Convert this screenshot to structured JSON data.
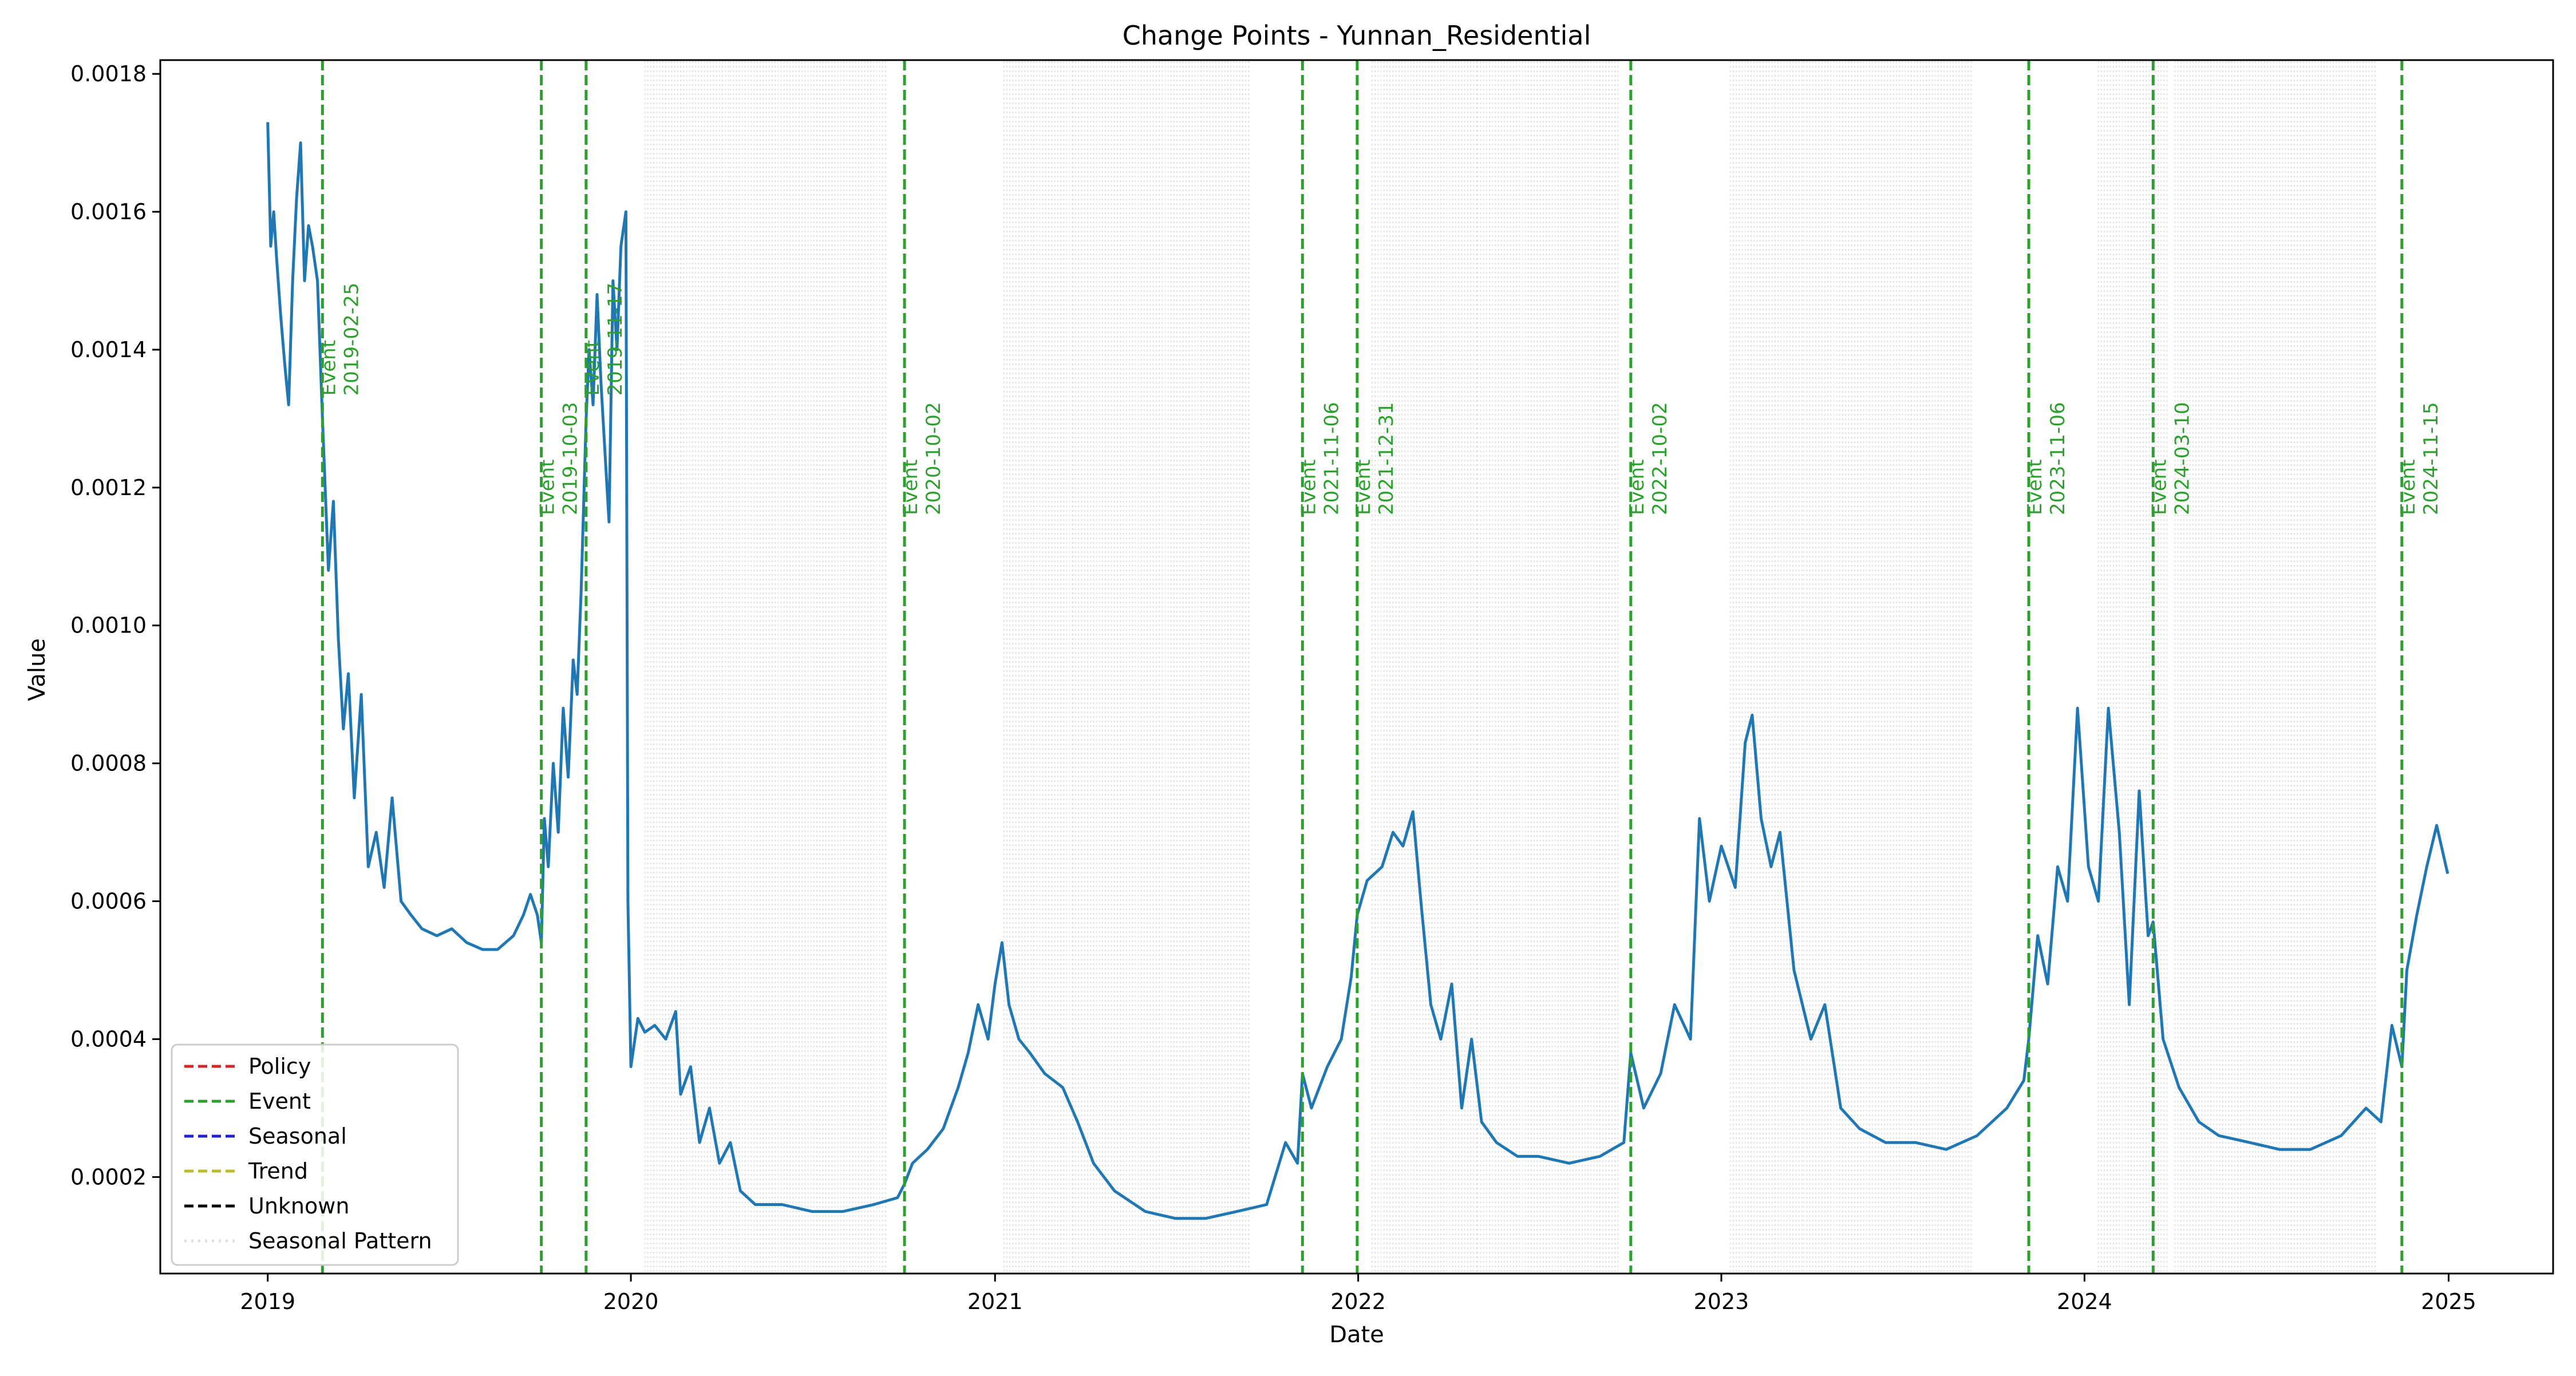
{
  "chart_data": {
    "type": "line",
    "title": "Change Points - Yunnan_Residential",
    "xlabel": "Date",
    "ylabel": "Value",
    "xlim": [
      "2018-09-15",
      "2025-04-16"
    ],
    "ylim": [
      6e-05,
      0.00182
    ],
    "x_ticks": [
      "2019",
      "2020",
      "2021",
      "2022",
      "2023",
      "2024",
      "2025"
    ],
    "y_ticks": [
      "0.0002",
      "0.0004",
      "0.0006",
      "0.0008",
      "0.0010",
      "0.0012",
      "0.0014",
      "0.0016",
      "0.0018"
    ],
    "grid": false,
    "legend_position": "lower-left",
    "legend": [
      {
        "label": "Policy",
        "color": "#d62728",
        "style": "dashed"
      },
      {
        "label": "Event",
        "color": "#2ca02c",
        "style": "dashed"
      },
      {
        "label": "Seasonal",
        "color": "#1f1fd6",
        "style": "dashed"
      },
      {
        "label": "Trend",
        "color": "#bcbd22",
        "style": "dashed"
      },
      {
        "label": "Unknown",
        "color": "#000000",
        "style": "dashed"
      },
      {
        "label": "Seasonal Pattern",
        "color": "#cccccc",
        "style": "dotted"
      }
    ],
    "colors": {
      "series": "#1f77b4",
      "event": "#2ca02c",
      "seasonal_pattern": "#c8c8c8"
    },
    "change_points": [
      {
        "date": "2019-02-25",
        "type": "Event"
      },
      {
        "date": "2019-10-03",
        "type": "Event"
      },
      {
        "date": "2019-11-17",
        "type": "Event"
      },
      {
        "date": "2020-10-02",
        "type": "Event"
      },
      {
        "date": "2021-11-06",
        "type": "Event"
      },
      {
        "date": "2021-12-31",
        "type": "Event"
      },
      {
        "date": "2022-10-02",
        "type": "Event"
      },
      {
        "date": "2023-11-06",
        "type": "Event"
      },
      {
        "date": "2024-03-10",
        "type": "Event"
      },
      {
        "date": "2024-11-15",
        "type": "Event"
      }
    ],
    "seasonal_pattern_ranges": [
      [
        "2020-01-15",
        "2020-04-10"
      ],
      [
        "2020-04-10",
        "2020-09-15"
      ],
      [
        "2021-01-10",
        "2021-03-20"
      ],
      [
        "2021-03-20",
        "2021-09-15"
      ],
      [
        "2022-01-15",
        "2022-05-01"
      ],
      [
        "2022-05-01",
        "2022-09-20"
      ],
      [
        "2023-01-10",
        "2023-03-25"
      ],
      [
        "2023-03-25",
        "2023-09-10"
      ],
      [
        "2024-01-15",
        "2024-03-25"
      ],
      [
        "2024-04-01",
        "2024-10-20"
      ]
    ],
    "series": [
      {
        "values": [
          {
            "x": "2019-01-01",
            "y": 0.00173
          },
          {
            "x": "2019-01-04",
            "y": 0.00155
          },
          {
            "x": "2019-01-07",
            "y": 0.0016
          },
          {
            "x": "2019-01-10",
            "y": 0.00153
          },
          {
            "x": "2019-01-14",
            "y": 0.00145
          },
          {
            "x": "2019-01-18",
            "y": 0.00138
          },
          {
            "x": "2019-01-22",
            "y": 0.00132
          },
          {
            "x": "2019-01-26",
            "y": 0.0015
          },
          {
            "x": "2019-01-30",
            "y": 0.00162
          },
          {
            "x": "2019-02-03",
            "y": 0.0017
          },
          {
            "x": "2019-02-07",
            "y": 0.0015
          },
          {
            "x": "2019-02-11",
            "y": 0.00158
          },
          {
            "x": "2019-02-15",
            "y": 0.00155
          },
          {
            "x": "2019-02-20",
            "y": 0.0015
          },
          {
            "x": "2019-02-25",
            "y": 0.0013
          },
          {
            "x": "2019-03-03",
            "y": 0.00108
          },
          {
            "x": "2019-03-08",
            "y": 0.00118
          },
          {
            "x": "2019-03-13",
            "y": 0.00098
          },
          {
            "x": "2019-03-18",
            "y": 0.00085
          },
          {
            "x": "2019-03-23",
            "y": 0.00093
          },
          {
            "x": "2019-03-29",
            "y": 0.00075
          },
          {
            "x": "2019-04-05",
            "y": 0.0009
          },
          {
            "x": "2019-04-12",
            "y": 0.00065
          },
          {
            "x": "2019-04-20",
            "y": 0.0007
          },
          {
            "x": "2019-04-28",
            "y": 0.00062
          },
          {
            "x": "2019-05-06",
            "y": 0.00075
          },
          {
            "x": "2019-05-15",
            "y": 0.0006
          },
          {
            "x": "2019-05-25",
            "y": 0.00058
          },
          {
            "x": "2019-06-05",
            "y": 0.00056
          },
          {
            "x": "2019-06-20",
            "y": 0.00055
          },
          {
            "x": "2019-07-05",
            "y": 0.00056
          },
          {
            "x": "2019-07-20",
            "y": 0.00054
          },
          {
            "x": "2019-08-05",
            "y": 0.00053
          },
          {
            "x": "2019-08-20",
            "y": 0.00053
          },
          {
            "x": "2019-09-05",
            "y": 0.00055
          },
          {
            "x": "2019-09-15",
            "y": 0.00058
          },
          {
            "x": "2019-09-22",
            "y": 0.00061
          },
          {
            "x": "2019-09-29",
            "y": 0.00058
          },
          {
            "x": "2019-10-03",
            "y": 0.00054
          },
          {
            "x": "2019-10-06",
            "y": 0.00072
          },
          {
            "x": "2019-10-10",
            "y": 0.00065
          },
          {
            "x": "2019-10-15",
            "y": 0.0008
          },
          {
            "x": "2019-10-20",
            "y": 0.0007
          },
          {
            "x": "2019-10-25",
            "y": 0.00088
          },
          {
            "x": "2019-10-30",
            "y": 0.00078
          },
          {
            "x": "2019-11-04",
            "y": 0.00095
          },
          {
            "x": "2019-11-08",
            "y": 0.0009
          },
          {
            "x": "2019-11-12",
            "y": 0.00105
          },
          {
            "x": "2019-11-17",
            "y": 0.0013
          },
          {
            "x": "2019-11-20",
            "y": 0.0014
          },
          {
            "x": "2019-11-24",
            "y": 0.00132
          },
          {
            "x": "2019-11-28",
            "y": 0.00148
          },
          {
            "x": "2019-12-02",
            "y": 0.00135
          },
          {
            "x": "2019-12-06",
            "y": 0.00125
          },
          {
            "x": "2019-12-10",
            "y": 0.00115
          },
          {
            "x": "2019-12-14",
            "y": 0.0015
          },
          {
            "x": "2019-12-18",
            "y": 0.0014
          },
          {
            "x": "2019-12-22",
            "y": 0.00155
          },
          {
            "x": "2019-12-27",
            "y": 0.0016
          },
          {
            "x": "2019-12-29",
            "y": 0.0006
          },
          {
            "x": "2020-01-01",
            "y": 0.00036
          },
          {
            "x": "2020-01-08",
            "y": 0.00043
          },
          {
            "x": "2020-01-15",
            "y": 0.00041
          },
          {
            "x": "2020-01-25",
            "y": 0.00042
          },
          {
            "x": "2020-02-05",
            "y": 0.0004
          },
          {
            "x": "2020-02-15",
            "y": 0.00044
          },
          {
            "x": "2020-02-20",
            "y": 0.00032
          },
          {
            "x": "2020-03-01",
            "y": 0.00036
          },
          {
            "x": "2020-03-10",
            "y": 0.00025
          },
          {
            "x": "2020-03-20",
            "y": 0.0003
          },
          {
            "x": "2020-03-30",
            "y": 0.00022
          },
          {
            "x": "2020-04-10",
            "y": 0.00025
          },
          {
            "x": "2020-04-20",
            "y": 0.00018
          },
          {
            "x": "2020-05-05",
            "y": 0.00016
          },
          {
            "x": "2020-06-01",
            "y": 0.00016
          },
          {
            "x": "2020-07-01",
            "y": 0.00015
          },
          {
            "x": "2020-08-01",
            "y": 0.00015
          },
          {
            "x": "2020-09-01",
            "y": 0.00016
          },
          {
            "x": "2020-09-25",
            "y": 0.00017
          },
          {
            "x": "2020-10-02",
            "y": 0.00019
          },
          {
            "x": "2020-10-10",
            "y": 0.00022
          },
          {
            "x": "2020-10-25",
            "y": 0.00024
          },
          {
            "x": "2020-11-10",
            "y": 0.00027
          },
          {
            "x": "2020-11-25",
            "y": 0.00033
          },
          {
            "x": "2020-12-05",
            "y": 0.00038
          },
          {
            "x": "2020-12-15",
            "y": 0.00045
          },
          {
            "x": "2020-12-25",
            "y": 0.0004
          },
          {
            "x": "2021-01-01",
            "y": 0.00048
          },
          {
            "x": "2021-01-08",
            "y": 0.00054
          },
          {
            "x": "2021-01-15",
            "y": 0.00045
          },
          {
            "x": "2021-01-25",
            "y": 0.0004
          },
          {
            "x": "2021-02-05",
            "y": 0.00038
          },
          {
            "x": "2021-02-20",
            "y": 0.00035
          },
          {
            "x": "2021-03-10",
            "y": 0.00033
          },
          {
            "x": "2021-03-25",
            "y": 0.00028
          },
          {
            "x": "2021-04-10",
            "y": 0.00022
          },
          {
            "x": "2021-05-01",
            "y": 0.00018
          },
          {
            "x": "2021-06-01",
            "y": 0.00015
          },
          {
            "x": "2021-07-01",
            "y": 0.00014
          },
          {
            "x": "2021-08-01",
            "y": 0.00014
          },
          {
            "x": "2021-09-01",
            "y": 0.00015
          },
          {
            "x": "2021-10-01",
            "y": 0.00016
          },
          {
            "x": "2021-10-20",
            "y": 0.00025
          },
          {
            "x": "2021-11-01",
            "y": 0.00022
          },
          {
            "x": "2021-11-06",
            "y": 0.00035
          },
          {
            "x": "2021-11-15",
            "y": 0.0003
          },
          {
            "x": "2021-12-01",
            "y": 0.00036
          },
          {
            "x": "2021-12-15",
            "y": 0.0004
          },
          {
            "x": "2021-12-25",
            "y": 0.00049
          },
          {
            "x": "2021-12-31",
            "y": 0.00058
          },
          {
            "x": "2022-01-10",
            "y": 0.00063
          },
          {
            "x": "2022-01-25",
            "y": 0.00065
          },
          {
            "x": "2022-02-05",
            "y": 0.0007
          },
          {
            "x": "2022-02-15",
            "y": 0.00068
          },
          {
            "x": "2022-02-25",
            "y": 0.00073
          },
          {
            "x": "2022-03-05",
            "y": 0.0006
          },
          {
            "x": "2022-03-15",
            "y": 0.00045
          },
          {
            "x": "2022-03-25",
            "y": 0.0004
          },
          {
            "x": "2022-04-05",
            "y": 0.00048
          },
          {
            "x": "2022-04-15",
            "y": 0.0003
          },
          {
            "x": "2022-04-25",
            "y": 0.0004
          },
          {
            "x": "2022-05-05",
            "y": 0.00028
          },
          {
            "x": "2022-05-20",
            "y": 0.00025
          },
          {
            "x": "2022-06-10",
            "y": 0.00023
          },
          {
            "x": "2022-07-01",
            "y": 0.00023
          },
          {
            "x": "2022-08-01",
            "y": 0.00022
          },
          {
            "x": "2022-09-01",
            "y": 0.00023
          },
          {
            "x": "2022-09-25",
            "y": 0.00025
          },
          {
            "x": "2022-10-02",
            "y": 0.00038
          },
          {
            "x": "2022-10-15",
            "y": 0.0003
          },
          {
            "x": "2022-11-01",
            "y": 0.00035
          },
          {
            "x": "2022-11-15",
            "y": 0.00045
          },
          {
            "x": "2022-12-01",
            "y": 0.0004
          },
          {
            "x": "2022-12-10",
            "y": 0.00072
          },
          {
            "x": "2022-12-20",
            "y": 0.0006
          },
          {
            "x": "2023-01-01",
            "y": 0.00068
          },
          {
            "x": "2023-01-15",
            "y": 0.00062
          },
          {
            "x": "2023-01-25",
            "y": 0.00083
          },
          {
            "x": "2023-02-01",
            "y": 0.00087
          },
          {
            "x": "2023-02-10",
            "y": 0.00072
          },
          {
            "x": "2023-02-20",
            "y": 0.00065
          },
          {
            "x": "2023-03-01",
            "y": 0.0007
          },
          {
            "x": "2023-03-15",
            "y": 0.0005
          },
          {
            "x": "2023-04-01",
            "y": 0.0004
          },
          {
            "x": "2023-04-15",
            "y": 0.00045
          },
          {
            "x": "2023-05-01",
            "y": 0.0003
          },
          {
            "x": "2023-05-20",
            "y": 0.00027
          },
          {
            "x": "2023-06-15",
            "y": 0.00025
          },
          {
            "x": "2023-07-15",
            "y": 0.00025
          },
          {
            "x": "2023-08-15",
            "y": 0.00024
          },
          {
            "x": "2023-09-15",
            "y": 0.00026
          },
          {
            "x": "2023-10-15",
            "y": 0.0003
          },
          {
            "x": "2023-11-01",
            "y": 0.00034
          },
          {
            "x": "2023-11-06",
            "y": 0.0004
          },
          {
            "x": "2023-11-15",
            "y": 0.00055
          },
          {
            "x": "2023-11-25",
            "y": 0.00048
          },
          {
            "x": "2023-12-05",
            "y": 0.00065
          },
          {
            "x": "2023-12-15",
            "y": 0.0006
          },
          {
            "x": "2023-12-25",
            "y": 0.00088
          },
          {
            "x": "2024-01-05",
            "y": 0.00065
          },
          {
            "x": "2024-01-15",
            "y": 0.0006
          },
          {
            "x": "2024-01-25",
            "y": 0.00088
          },
          {
            "x": "2024-02-05",
            "y": 0.0007
          },
          {
            "x": "2024-02-15",
            "y": 0.00045
          },
          {
            "x": "2024-02-25",
            "y": 0.00076
          },
          {
            "x": "2024-03-05",
            "y": 0.00055
          },
          {
            "x": "2024-03-10",
            "y": 0.00057
          },
          {
            "x": "2024-03-20",
            "y": 0.0004
          },
          {
            "x": "2024-04-05",
            "y": 0.00033
          },
          {
            "x": "2024-04-25",
            "y": 0.00028
          },
          {
            "x": "2024-05-15",
            "y": 0.00026
          },
          {
            "x": "2024-06-15",
            "y": 0.00025
          },
          {
            "x": "2024-07-15",
            "y": 0.00024
          },
          {
            "x": "2024-08-15",
            "y": 0.00024
          },
          {
            "x": "2024-09-15",
            "y": 0.00026
          },
          {
            "x": "2024-10-10",
            "y": 0.0003
          },
          {
            "x": "2024-10-25",
            "y": 0.00028
          },
          {
            "x": "2024-11-05",
            "y": 0.00042
          },
          {
            "x": "2024-11-15",
            "y": 0.00036
          },
          {
            "x": "2024-11-20",
            "y": 0.0005
          },
          {
            "x": "2024-11-30",
            "y": 0.00058
          },
          {
            "x": "2024-12-10",
            "y": 0.00065
          },
          {
            "x": "2024-12-20",
            "y": 0.00071
          },
          {
            "x": "2024-12-31",
            "y": 0.00064
          }
        ]
      }
    ]
  }
}
